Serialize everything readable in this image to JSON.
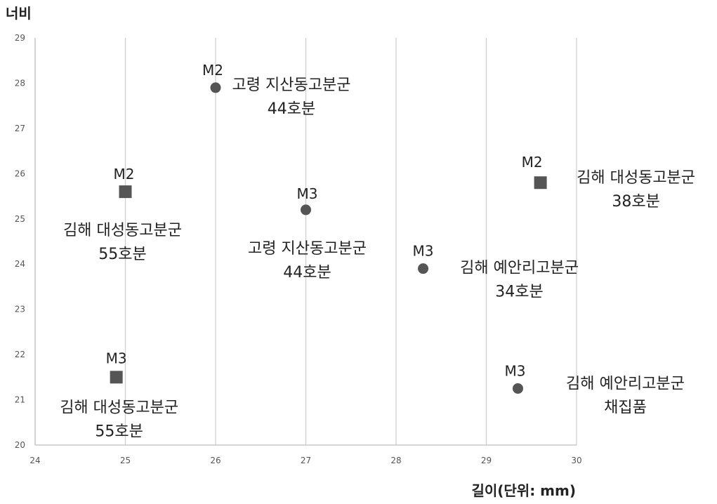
{
  "chart_data": {
    "type": "scatter",
    "xlabel": "길이(단위: mm)",
    "ylabel": "너비",
    "xlim": [
      24,
      30
    ],
    "ylim": [
      20,
      29
    ],
    "x_ticks": [
      "24",
      "25",
      "26",
      "27",
      "28",
      "29",
      "30"
    ],
    "y_ticks": [
      "20",
      "21",
      "22",
      "23",
      "24",
      "25",
      "26",
      "27",
      "28",
      "29"
    ],
    "grid": "vertical",
    "marker_color": "#555555",
    "points": [
      {
        "x": 26.0,
        "y": 27.9,
        "marker": "circle",
        "label": "M2",
        "annotation": [
          "고령 지산동고분군",
          "44호분"
        ]
      },
      {
        "x": 25.0,
        "y": 25.6,
        "marker": "square",
        "label": "M2",
        "annotation": [
          "김해 대성동고분군",
          "55호분"
        ]
      },
      {
        "x": 27.0,
        "y": 25.2,
        "marker": "circle",
        "label": "M3",
        "annotation": [
          "고령 지산동고분군",
          "44호분"
        ]
      },
      {
        "x": 29.6,
        "y": 25.8,
        "marker": "square",
        "label": "M2",
        "annotation": [
          "김해 대성동고분군",
          "38호분"
        ]
      },
      {
        "x": 28.3,
        "y": 23.9,
        "marker": "circle",
        "label": "M3",
        "annotation": [
          "김해 예안리고분군",
          "34호분"
        ]
      },
      {
        "x": 24.9,
        "y": 21.5,
        "marker": "square",
        "label": "M3",
        "annotation": [
          "김해 대성동고분군",
          "55호분"
        ]
      },
      {
        "x": 29.35,
        "y": 21.25,
        "marker": "circle",
        "label": "M3",
        "annotation": [
          "김해 예안리고분군",
          "채집품"
        ]
      }
    ]
  }
}
